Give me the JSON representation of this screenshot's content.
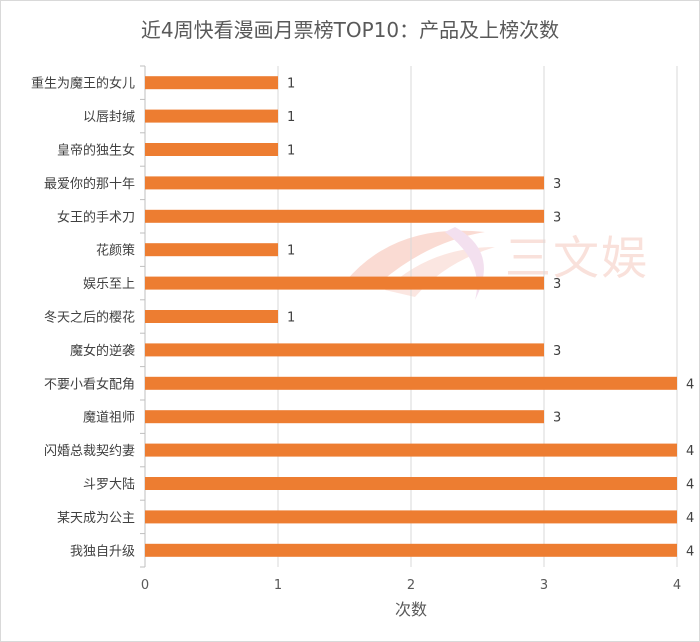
{
  "chart_data": {
    "type": "bar",
    "orientation": "horizontal",
    "title": "近4周快看漫画月票榜TOP10：产品及上榜次数",
    "xlabel": "次数",
    "ylabel": "",
    "xlim": [
      0,
      4
    ],
    "xticks": [
      0,
      1,
      2,
      3,
      4
    ],
    "grid": true,
    "bar_color": "#ed7d31",
    "categories": [
      "重生为魔王的女儿",
      "以唇封缄",
      "皇帝的独生女",
      "最爱你的那十年",
      "女王的手术刀",
      "花颜策",
      "娱乐至上",
      "冬天之后的樱花",
      "魔女的逆袭",
      "不要小看女配角",
      "魔道祖师",
      "闪婚总裁契约妻",
      "斗罗大陆",
      "某天成为公主",
      "我独自升级"
    ],
    "values": [
      1,
      1,
      1,
      3,
      3,
      1,
      3,
      1,
      3,
      4,
      3,
      4,
      4,
      4,
      4
    ]
  },
  "watermark": {
    "text": "三文娱"
  }
}
